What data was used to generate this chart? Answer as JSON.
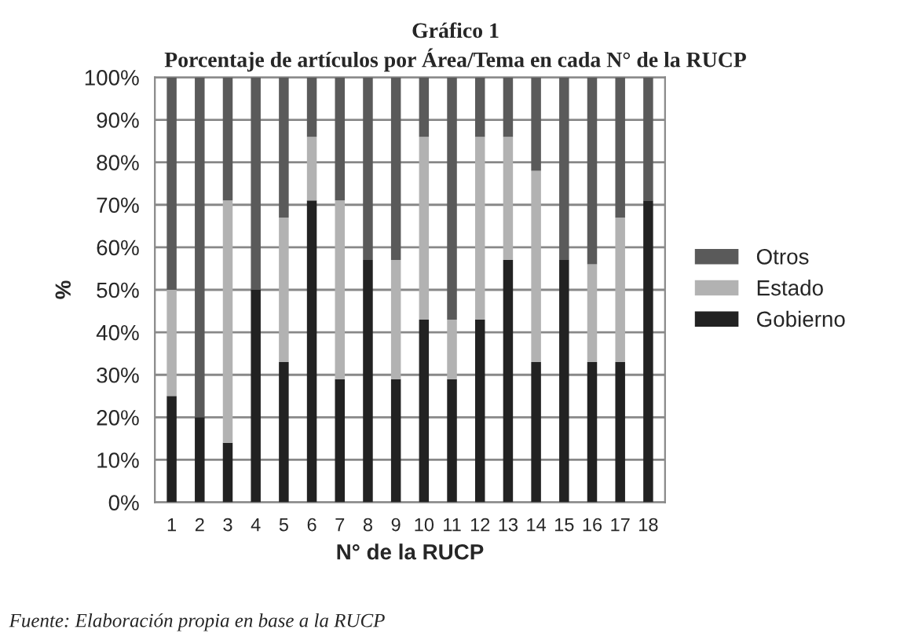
{
  "chart_data": {
    "type": "bar",
    "stacked": true,
    "title": "Gráfico 1",
    "subtitle": "Porcentaje de artículos por Área/Tema en cada N° de la RUCP",
    "xlabel": "N° de la RUCP",
    "ylabel": "%",
    "categories": [
      "1",
      "2",
      "3",
      "4",
      "5",
      "6",
      "7",
      "8",
      "9",
      "10",
      "11",
      "12",
      "13",
      "14",
      "15",
      "16",
      "17",
      "18"
    ],
    "series": [
      {
        "name": "Gobierno",
        "color": "#222222",
        "values": [
          25,
          20,
          14,
          50,
          33,
          71,
          29,
          57,
          29,
          43,
          29,
          43,
          57,
          33,
          57,
          33,
          33,
          71
        ]
      },
      {
        "name": "Estado",
        "color": "#b2b2b2",
        "values": [
          25,
          0,
          57,
          0,
          34,
          15,
          42,
          0,
          28,
          43,
          14,
          43,
          29,
          45,
          0,
          23,
          34,
          0
        ]
      },
      {
        "name": "Otros",
        "color": "#5a5a5a",
        "values": [
          50,
          80,
          29,
          50,
          33,
          14,
          29,
          43,
          43,
          14,
          57,
          14,
          14,
          22,
          43,
          44,
          33,
          29
        ]
      }
    ],
    "ylim": [
      0,
      100
    ],
    "yticks": [
      {
        "value": 0,
        "label": "0%"
      },
      {
        "value": 10,
        "label": "10%"
      },
      {
        "value": 20,
        "label": "20%"
      },
      {
        "value": 30,
        "label": "30%"
      },
      {
        "value": 40,
        "label": "40%"
      },
      {
        "value": 50,
        "label": "50%"
      },
      {
        "value": 60,
        "label": "60%"
      },
      {
        "value": 70,
        "label": "70%"
      },
      {
        "value": 80,
        "label": "80%"
      },
      {
        "value": 90,
        "label": "90%"
      },
      {
        "value": 100,
        "label": "100%"
      }
    ],
    "grid": "y",
    "legend": "right",
    "annotations": [
      "Fuente: Elaboración propia en base a la RUCP"
    ]
  }
}
